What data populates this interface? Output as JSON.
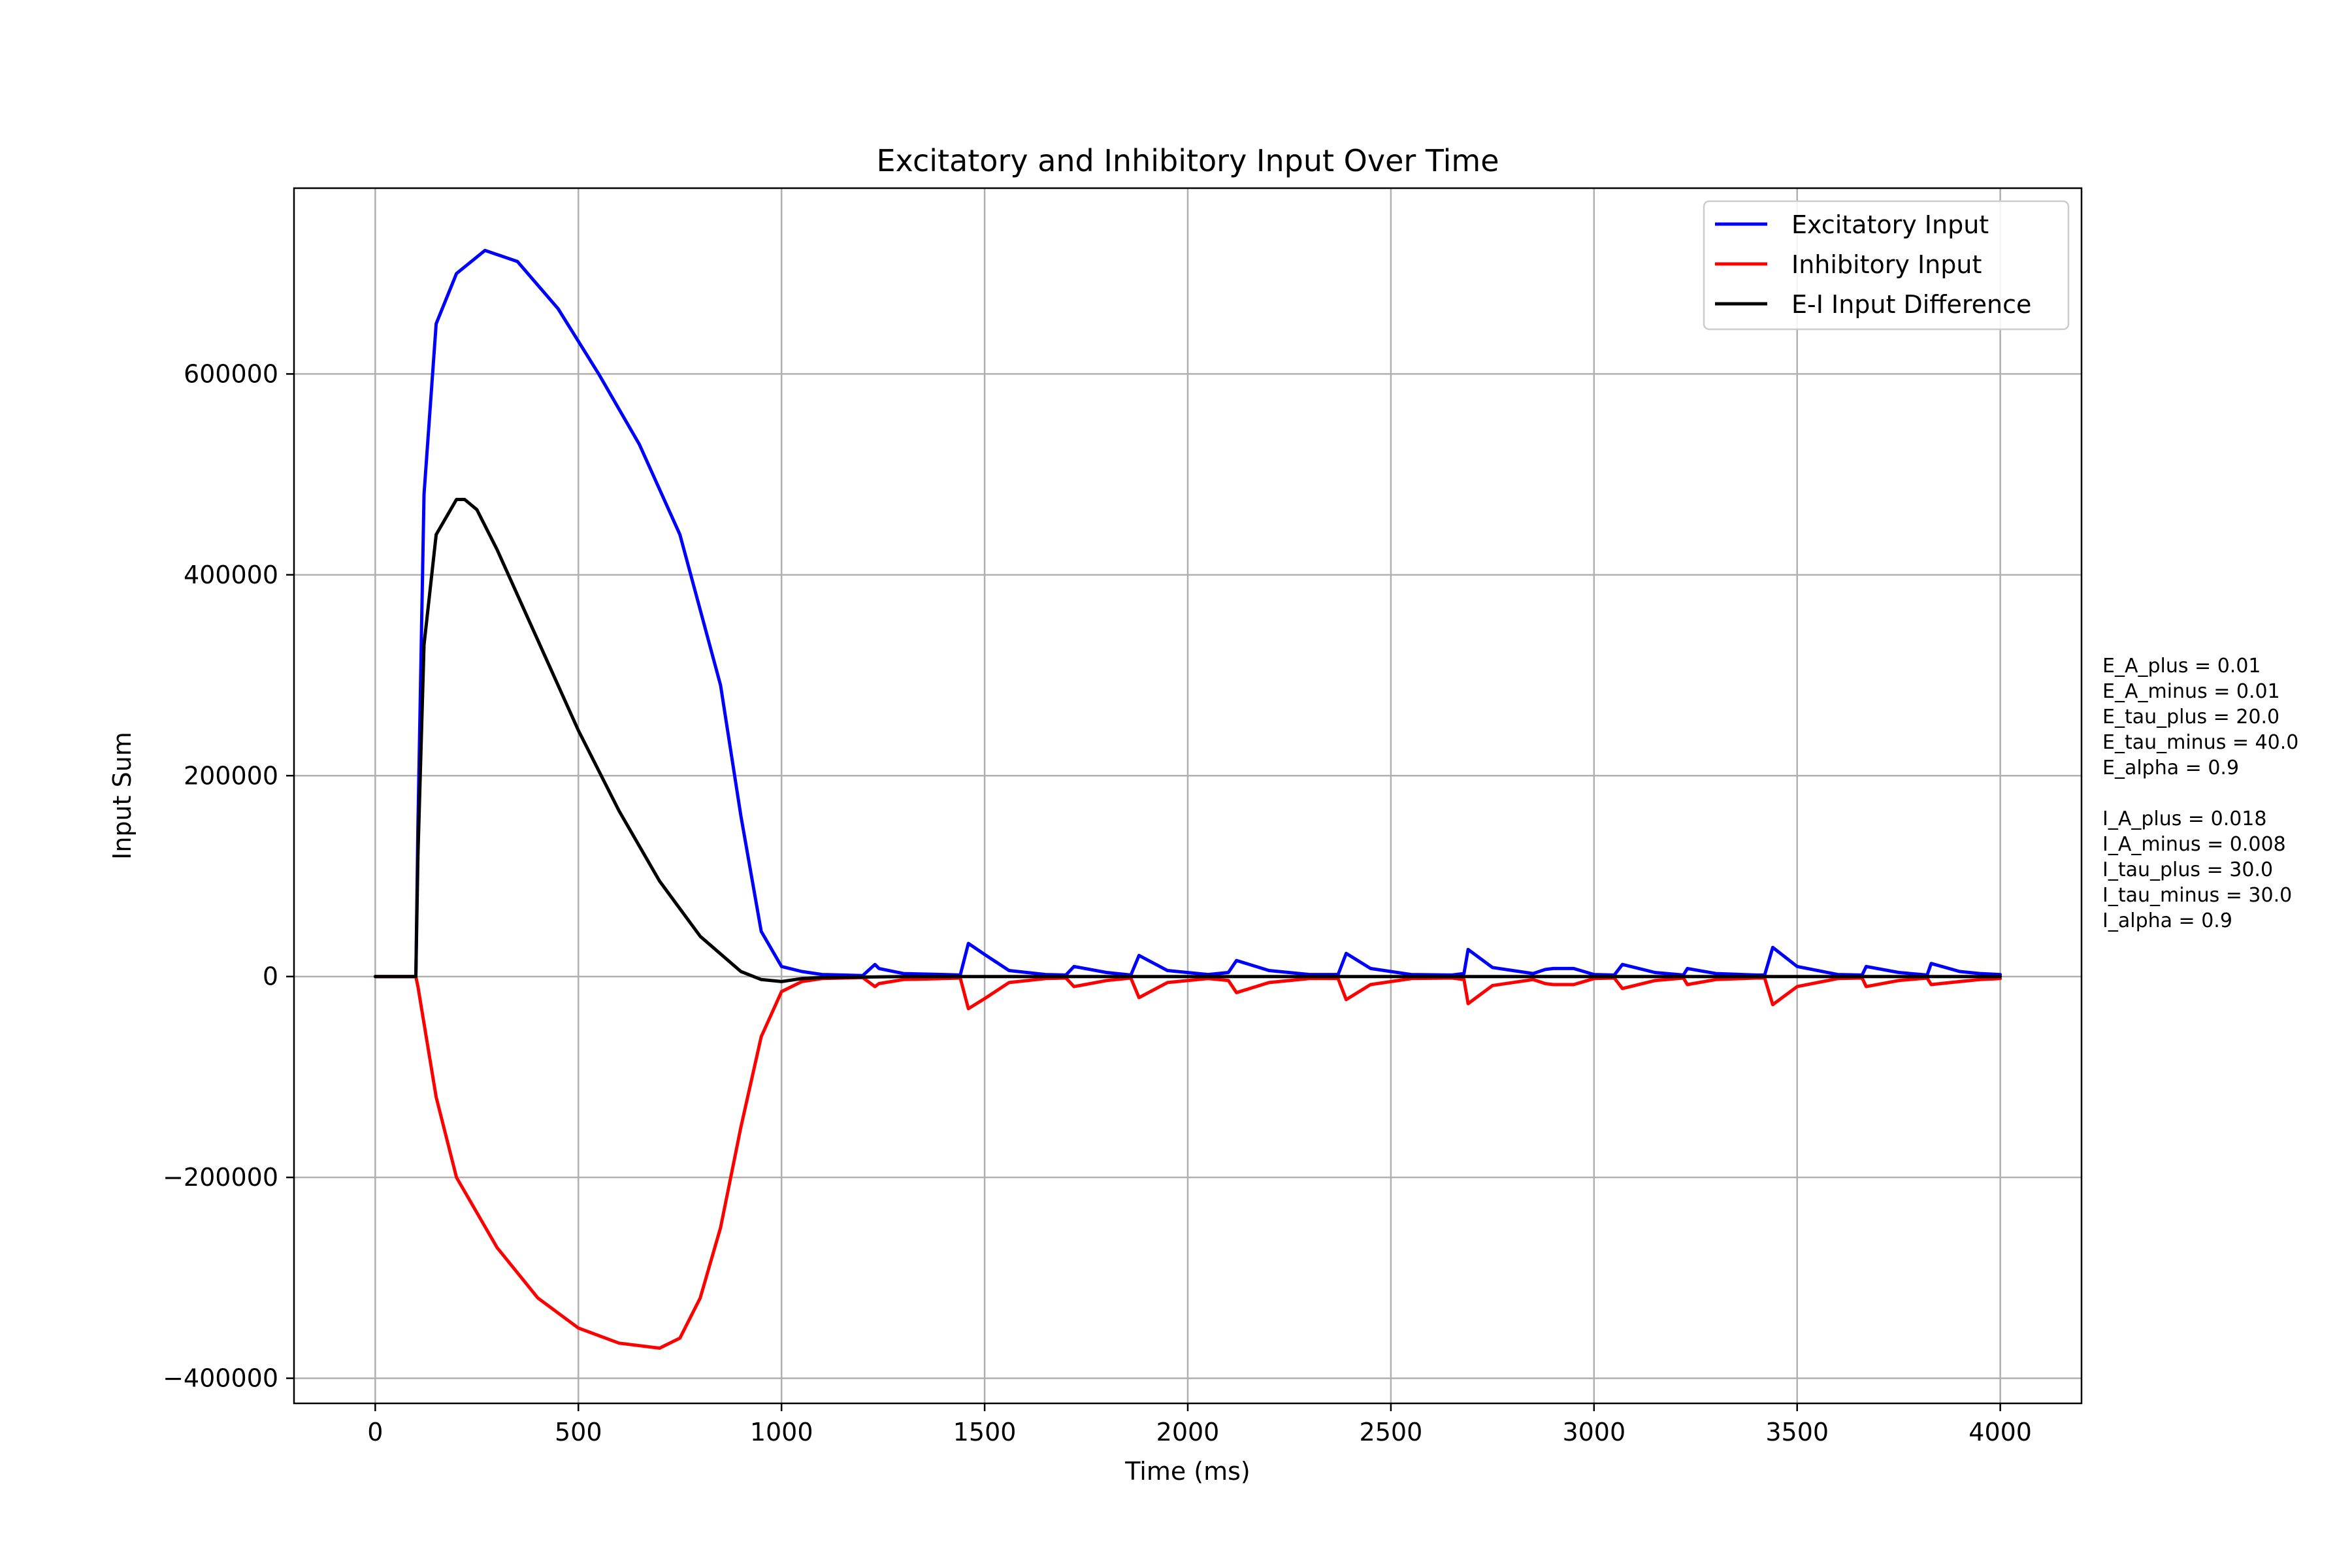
{
  "chart_data": {
    "type": "line",
    "title": "Excitatory and Inhibitory Input Over Time",
    "xlabel": "Time (ms)",
    "ylabel": "Input Sum",
    "xlim": [
      -200,
      4200
    ],
    "ylim": [
      -425000,
      785000
    ],
    "xticks": [
      0,
      500,
      1000,
      1500,
      2000,
      2500,
      3000,
      3500,
      4000
    ],
    "xtick_labels": [
      "0",
      "500",
      "1000",
      "1500",
      "2000",
      "2500",
      "3000",
      "3500",
      "4000"
    ],
    "yticks": [
      -400000,
      -200000,
      0,
      200000,
      400000,
      600000
    ],
    "ytick_labels": [
      "−400000",
      "−200000",
      "0",
      "200000",
      "400000",
      "600000"
    ],
    "grid": true,
    "legend_position": "top-right",
    "series": [
      {
        "name": "Excitatory Input",
        "color": "#0000ff",
        "x": [
          0,
          100,
          105,
          120,
          150,
          200,
          270,
          350,
          450,
          550,
          650,
          750,
          850,
          900,
          950,
          1000,
          1050,
          1100,
          1150,
          1200,
          1230,
          1240,
          1300,
          1400,
          1440,
          1460,
          1500,
          1560,
          1650,
          1700,
          1720,
          1800,
          1860,
          1880,
          1950,
          2050,
          2100,
          2120,
          2200,
          2300,
          2370,
          2390,
          2450,
          2550,
          2650,
          2680,
          2690,
          2750,
          2850,
          2880,
          2900,
          2950,
          3000,
          3050,
          3070,
          3150,
          3220,
          3230,
          3300,
          3400,
          3420,
          3440,
          3500,
          3600,
          3660,
          3670,
          3750,
          3820,
          3830,
          3900,
          3950,
          4000
        ],
        "y": [
          0,
          0,
          150000,
          480000,
          650000,
          700000,
          723000,
          712000,
          665000,
          600000,
          530000,
          440000,
          290000,
          160000,
          45000,
          10000,
          5000,
          2000,
          1500,
          1000,
          12000,
          8000,
          3000,
          2000,
          1500,
          33000,
          22000,
          6000,
          2000,
          1500,
          10000,
          4000,
          1500,
          21000,
          6000,
          2000,
          4000,
          16000,
          6000,
          2000,
          2000,
          23000,
          8000,
          2000,
          1500,
          3000,
          27000,
          9000,
          3000,
          7000,
          8000,
          8000,
          2000,
          1500,
          12000,
          4000,
          1500,
          8000,
          3000,
          1500,
          1500,
          29000,
          10000,
          2000,
          1500,
          10000,
          4000,
          1500,
          13000,
          5000,
          3000,
          2000
        ]
      },
      {
        "name": "Inhibitory Input",
        "color": "#ff0000",
        "x": [
          0,
          100,
          105,
          150,
          200,
          300,
          400,
          500,
          600,
          700,
          750,
          800,
          850,
          900,
          950,
          1000,
          1050,
          1100,
          1150,
          1200,
          1230,
          1240,
          1300,
          1400,
          1440,
          1460,
          1500,
          1560,
          1650,
          1700,
          1720,
          1800,
          1860,
          1880,
          1950,
          2050,
          2100,
          2120,
          2200,
          2300,
          2370,
          2390,
          2450,
          2550,
          2650,
          2680,
          2690,
          2750,
          2850,
          2880,
          2900,
          2950,
          3000,
          3050,
          3070,
          3150,
          3220,
          3230,
          3300,
          3400,
          3420,
          3440,
          3500,
          3600,
          3660,
          3670,
          3750,
          3820,
          3830,
          3900,
          3950,
          4000
        ],
        "y": [
          0,
          0,
          -10000,
          -120000,
          -200000,
          -270000,
          -320000,
          -350000,
          -365000,
          -370000,
          -360000,
          -320000,
          -250000,
          -150000,
          -60000,
          -15000,
          -5000,
          -2000,
          -1500,
          -1000,
          -10000,
          -7000,
          -3000,
          -2000,
          -1500,
          -32000,
          -22000,
          -6000,
          -2000,
          -1500,
          -10000,
          -4000,
          -1500,
          -21000,
          -6000,
          -2000,
          -4000,
          -16000,
          -6000,
          -2000,
          -2000,
          -23000,
          -8000,
          -2000,
          -1500,
          -3000,
          -27000,
          -9000,
          -3000,
          -7000,
          -8000,
          -8000,
          -2000,
          -1500,
          -12000,
          -4000,
          -1500,
          -8000,
          -3000,
          -1500,
          -1500,
          -28000,
          -10000,
          -2000,
          -1500,
          -10000,
          -4000,
          -1500,
          -8000,
          -5000,
          -3000,
          -2000
        ]
      },
      {
        "name": "E-I Input Difference",
        "color": "#000000",
        "x": [
          0,
          100,
          105,
          120,
          150,
          200,
          220,
          250,
          300,
          400,
          500,
          600,
          700,
          800,
          900,
          950,
          1000,
          1050,
          1100,
          1200,
          1300,
          1400,
          1500,
          1600,
          1800,
          2000,
          2200,
          2400,
          2600,
          2800,
          3000,
          3200,
          3400,
          3600,
          3800,
          4000
        ],
        "y": [
          0,
          0,
          120000,
          330000,
          440000,
          475000,
          475000,
          465000,
          425000,
          335000,
          245000,
          165000,
          95000,
          40000,
          5000,
          -3000,
          -5000,
          -2000,
          -1000,
          -500,
          0,
          0,
          0,
          0,
          0,
          0,
          0,
          0,
          0,
          0,
          0,
          0,
          0,
          0,
          0,
          0
        ]
      }
    ],
    "annotation_lines": [
      "E_A_plus = 0.01",
      "E_A_minus = 0.01",
      "E_tau_plus = 20.0",
      "E_tau_minus = 40.0",
      "E_alpha = 0.9",
      "",
      "I_A_plus = 0.018",
      "I_A_minus = 0.008",
      "I_tau_plus = 30.0",
      "I_tau_minus = 30.0",
      "I_alpha = 0.9"
    ]
  }
}
